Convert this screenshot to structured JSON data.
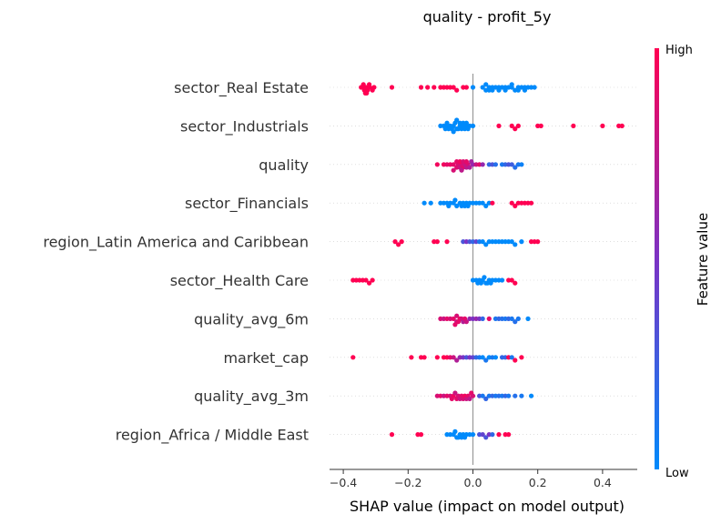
{
  "chart_data": {
    "type": "scatter",
    "title": "quality - profit_5y",
    "xlabel": "SHAP value (impact on model output)",
    "xlim": [
      -0.42,
      0.47
    ],
    "xticks": [
      -0.4,
      -0.2,
      0.0,
      0.2,
      0.4
    ],
    "xtick_labels": [
      "−0.4",
      "−0.2",
      "0.0",
      "0.2",
      "0.4"
    ],
    "colorbar": {
      "title": "Feature value",
      "high_label": "High",
      "low_label": "Low",
      "low_color": "#008afb",
      "mid_color": "#7b32c4",
      "high_color": "#ff0052"
    },
    "features": [
      {
        "name": "sector_Real Estate",
        "points": [
          [
            -0.345,
            1
          ],
          [
            -0.34,
            1
          ],
          [
            -0.335,
            1
          ],
          [
            -0.33,
            1
          ],
          [
            -0.325,
            1
          ],
          [
            -0.32,
            1
          ],
          [
            -0.338,
            1
          ],
          [
            -0.332,
            1
          ],
          [
            -0.328,
            1
          ],
          [
            -0.318,
            1
          ],
          [
            -0.31,
            1
          ],
          [
            -0.305,
            1
          ],
          [
            -0.25,
            1
          ],
          [
            -0.16,
            1
          ],
          [
            -0.14,
            1
          ],
          [
            -0.12,
            1
          ],
          [
            -0.1,
            1
          ],
          [
            -0.09,
            1
          ],
          [
            -0.08,
            1
          ],
          [
            -0.07,
            1
          ],
          [
            -0.06,
            1
          ],
          [
            -0.05,
            1
          ],
          [
            -0.03,
            1
          ],
          [
            -0.02,
            1
          ],
          [
            0.0,
            0
          ],
          [
            0.03,
            0
          ],
          [
            0.04,
            0
          ],
          [
            0.05,
            0
          ],
          [
            0.06,
            0
          ],
          [
            0.07,
            0
          ],
          [
            0.08,
            0
          ],
          [
            0.09,
            0
          ],
          [
            0.1,
            0
          ],
          [
            0.11,
            0
          ],
          [
            0.12,
            0
          ],
          [
            0.13,
            0
          ],
          [
            0.14,
            0
          ],
          [
            0.15,
            0
          ],
          [
            0.16,
            0
          ],
          [
            0.17,
            0
          ],
          [
            0.18,
            0
          ],
          [
            0.19,
            0
          ],
          [
            0.05,
            0
          ],
          [
            0.08,
            0
          ],
          [
            0.12,
            0
          ],
          [
            0.14,
            0
          ],
          [
            0.1,
            0
          ],
          [
            0.04,
            0
          ],
          [
            0.06,
            0
          ],
          [
            0.16,
            0
          ]
        ]
      },
      {
        "name": "sector_Industrials",
        "points": [
          [
            -0.1,
            0
          ],
          [
            -0.09,
            0
          ],
          [
            -0.08,
            0
          ],
          [
            -0.07,
            0
          ],
          [
            -0.06,
            0
          ],
          [
            -0.05,
            0
          ],
          [
            -0.04,
            0
          ],
          [
            -0.03,
            0
          ],
          [
            -0.02,
            0
          ],
          [
            -0.01,
            0
          ],
          [
            0.0,
            0
          ],
          [
            -0.085,
            0
          ],
          [
            -0.065,
            0
          ],
          [
            -0.045,
            0
          ],
          [
            -0.025,
            0
          ],
          [
            -0.055,
            0
          ],
          [
            -0.075,
            0
          ],
          [
            -0.035,
            0
          ],
          [
            -0.015,
            0
          ],
          [
            -0.06,
            0
          ],
          [
            -0.04,
            0
          ],
          [
            -0.02,
            0
          ],
          [
            -0.08,
            0
          ],
          [
            -0.05,
            0
          ],
          [
            -0.03,
            0
          ],
          [
            0.08,
            1
          ],
          [
            0.12,
            1
          ],
          [
            0.13,
            1
          ],
          [
            0.14,
            1
          ],
          [
            0.2,
            1
          ],
          [
            0.21,
            1
          ],
          [
            0.31,
            1
          ],
          [
            0.4,
            1
          ],
          [
            0.45,
            1
          ],
          [
            0.46,
            1
          ]
        ]
      },
      {
        "name": "quality",
        "points": [
          [
            -0.11,
            0.95
          ],
          [
            -0.09,
            0.95
          ],
          [
            -0.08,
            0.9
          ],
          [
            -0.07,
            0.92
          ],
          [
            -0.06,
            0.9
          ],
          [
            -0.05,
            0.88
          ],
          [
            -0.045,
            0.85
          ],
          [
            -0.04,
            0.8
          ],
          [
            -0.035,
            0.85
          ],
          [
            -0.03,
            0.9
          ],
          [
            -0.025,
            0.8
          ],
          [
            -0.02,
            0.75
          ],
          [
            -0.015,
            0.85
          ],
          [
            -0.01,
            0.7
          ],
          [
            -0.005,
            0.65
          ],
          [
            0.0,
            0.6
          ],
          [
            -0.05,
            0.9
          ],
          [
            -0.04,
            0.95
          ],
          [
            -0.03,
            0.85
          ],
          [
            -0.02,
            0.9
          ],
          [
            -0.06,
            0.85
          ],
          [
            -0.035,
            0.75
          ],
          [
            0.01,
            0.8
          ],
          [
            0.02,
            0.9
          ],
          [
            0.03,
            0.6
          ],
          [
            0.05,
            0.2
          ],
          [
            0.06,
            0.3
          ],
          [
            0.07,
            0.15
          ],
          [
            0.09,
            0.1
          ],
          [
            0.1,
            0.2
          ],
          [
            0.11,
            0.3
          ],
          [
            0.12,
            0.25
          ],
          [
            0.13,
            0.15
          ],
          [
            0.14,
            0.1
          ],
          [
            0.15,
            0.05
          ]
        ]
      },
      {
        "name": "sector_Financials",
        "points": [
          [
            -0.15,
            0
          ],
          [
            -0.13,
            0
          ],
          [
            -0.1,
            0
          ],
          [
            -0.09,
            0
          ],
          [
            -0.08,
            0
          ],
          [
            -0.07,
            0
          ],
          [
            -0.06,
            0
          ],
          [
            -0.05,
            0
          ],
          [
            -0.04,
            0
          ],
          [
            -0.03,
            0
          ],
          [
            -0.02,
            0
          ],
          [
            -0.01,
            0
          ],
          [
            0.0,
            0
          ],
          [
            -0.075,
            0
          ],
          [
            -0.055,
            0
          ],
          [
            -0.035,
            0
          ],
          [
            -0.015,
            0
          ],
          [
            -0.025,
            0
          ],
          [
            0.01,
            0
          ],
          [
            0.02,
            0
          ],
          [
            0.03,
            0
          ],
          [
            0.04,
            0
          ],
          [
            0.05,
            0
          ],
          [
            0.06,
            1
          ],
          [
            0.12,
            1
          ],
          [
            0.13,
            1
          ],
          [
            0.14,
            1
          ],
          [
            0.15,
            1
          ],
          [
            0.16,
            1
          ],
          [
            0.17,
            1
          ],
          [
            0.18,
            1
          ]
        ]
      },
      {
        "name": "region_Latin America and Caribbean",
        "points": [
          [
            -0.24,
            1
          ],
          [
            -0.23,
            1
          ],
          [
            -0.22,
            1
          ],
          [
            -0.12,
            1
          ],
          [
            -0.11,
            1
          ],
          [
            -0.08,
            1
          ],
          [
            -0.03,
            0.3
          ],
          [
            -0.02,
            0.5
          ],
          [
            -0.01,
            0.3
          ],
          [
            0.0,
            0.2
          ],
          [
            0.01,
            0.4
          ],
          [
            0.02,
            0.1
          ],
          [
            0.03,
            0
          ],
          [
            0.04,
            0
          ],
          [
            0.05,
            0
          ],
          [
            0.06,
            0
          ],
          [
            0.07,
            0
          ],
          [
            0.08,
            0
          ],
          [
            0.09,
            0
          ],
          [
            0.1,
            0
          ],
          [
            0.11,
            0
          ],
          [
            0.12,
            0
          ],
          [
            0.13,
            0
          ],
          [
            0.15,
            0
          ],
          [
            0.18,
            1
          ],
          [
            0.19,
            1
          ],
          [
            0.2,
            1
          ]
        ]
      },
      {
        "name": "sector_Health Care",
        "points": [
          [
            -0.37,
            1
          ],
          [
            -0.36,
            1
          ],
          [
            -0.35,
            1
          ],
          [
            -0.34,
            1
          ],
          [
            -0.33,
            1
          ],
          [
            -0.32,
            1
          ],
          [
            -0.31,
            1
          ],
          [
            0.0,
            0
          ],
          [
            0.01,
            0
          ],
          [
            0.02,
            0
          ],
          [
            0.03,
            0
          ],
          [
            0.04,
            0
          ],
          [
            0.05,
            0
          ],
          [
            0.06,
            0
          ],
          [
            0.07,
            0
          ],
          [
            0.08,
            0
          ],
          [
            0.09,
            0
          ],
          [
            0.015,
            0
          ],
          [
            0.035,
            0
          ],
          [
            0.055,
            0
          ],
          [
            0.025,
            0
          ],
          [
            0.045,
            0
          ],
          [
            0.11,
            1
          ],
          [
            0.12,
            1
          ],
          [
            0.13,
            1
          ]
        ]
      },
      {
        "name": "quality_avg_6m",
        "points": [
          [
            -0.1,
            0.85
          ],
          [
            -0.09,
            0.8
          ],
          [
            -0.08,
            0.9
          ],
          [
            -0.07,
            0.85
          ],
          [
            -0.06,
            0.9
          ],
          [
            -0.05,
            0.8
          ],
          [
            -0.04,
            0.95
          ],
          [
            -0.035,
            0.85
          ],
          [
            -0.03,
            0.7
          ],
          [
            -0.025,
            0.9
          ],
          [
            -0.02,
            0.8
          ],
          [
            -0.01,
            0.6
          ],
          [
            0.0,
            0.5
          ],
          [
            -0.05,
            0.85
          ],
          [
            -0.045,
            0.9
          ],
          [
            -0.055,
            0.9
          ],
          [
            0.01,
            0.6
          ],
          [
            0.02,
            0.5
          ],
          [
            0.03,
            0.2
          ],
          [
            0.05,
            0.9
          ],
          [
            0.07,
            0.1
          ],
          [
            0.08,
            0.2
          ],
          [
            0.09,
            0.15
          ],
          [
            0.1,
            0.1
          ],
          [
            0.11,
            0.2
          ],
          [
            0.12,
            0.1
          ],
          [
            0.13,
            0.15
          ],
          [
            0.14,
            0.1
          ],
          [
            0.17,
            0
          ]
        ]
      },
      {
        "name": "market_cap",
        "points": [
          [
            -0.37,
            1
          ],
          [
            -0.19,
            1
          ],
          [
            -0.16,
            1
          ],
          [
            -0.15,
            1
          ],
          [
            -0.11,
            1
          ],
          [
            -0.09,
            1
          ],
          [
            -0.08,
            1
          ],
          [
            -0.07,
            0.9
          ],
          [
            -0.06,
            0.8
          ],
          [
            -0.05,
            0.7
          ],
          [
            -0.04,
            0.6
          ],
          [
            -0.03,
            0.5
          ],
          [
            -0.02,
            0.3
          ],
          [
            -0.01,
            0.5
          ],
          [
            0.0,
            0.4
          ],
          [
            0.01,
            0.2
          ],
          [
            0.02,
            0.1
          ],
          [
            0.03,
            0
          ],
          [
            0.04,
            0.1
          ],
          [
            0.05,
            0
          ],
          [
            0.06,
            0.1
          ],
          [
            0.07,
            0
          ],
          [
            0.09,
            0.2
          ],
          [
            0.1,
            0.2
          ],
          [
            0.11,
            1
          ],
          [
            0.12,
            0.1
          ],
          [
            0.13,
            1
          ],
          [
            0.15,
            1
          ]
        ]
      },
      {
        "name": "quality_avg_3m",
        "points": [
          [
            -0.11,
            0.85
          ],
          [
            -0.1,
            0.9
          ],
          [
            -0.09,
            0.8
          ],
          [
            -0.08,
            0.9
          ],
          [
            -0.07,
            0.85
          ],
          [
            -0.06,
            0.95
          ],
          [
            -0.05,
            0.9
          ],
          [
            -0.045,
            0.85
          ],
          [
            -0.04,
            0.8
          ],
          [
            -0.035,
            0.9
          ],
          [
            -0.03,
            0.85
          ],
          [
            -0.025,
            0.95
          ],
          [
            -0.02,
            0.8
          ],
          [
            -0.015,
            0.9
          ],
          [
            -0.01,
            0.75
          ],
          [
            -0.005,
            0.9
          ],
          [
            0.0,
            0.85
          ],
          [
            -0.065,
            0.9
          ],
          [
            -0.055,
            0.8
          ],
          [
            0.02,
            0.3
          ],
          [
            0.03,
            0.1
          ],
          [
            0.04,
            0.2
          ],
          [
            0.05,
            0.1
          ],
          [
            0.06,
            0.2
          ],
          [
            0.07,
            0.1
          ],
          [
            0.08,
            0.15
          ],
          [
            0.09,
            0.1
          ],
          [
            0.1,
            0.2
          ],
          [
            0.11,
            0.1
          ],
          [
            0.13,
            0.15
          ],
          [
            0.15,
            0.1
          ],
          [
            0.18,
            0
          ]
        ]
      },
      {
        "name": "region_Africa / Middle East",
        "points": [
          [
            -0.25,
            1
          ],
          [
            -0.17,
            1
          ],
          [
            -0.16,
            1
          ],
          [
            -0.08,
            0
          ],
          [
            -0.07,
            0
          ],
          [
            -0.06,
            0
          ],
          [
            -0.05,
            0
          ],
          [
            -0.04,
            0
          ],
          [
            -0.03,
            0
          ],
          [
            -0.02,
            0
          ],
          [
            -0.01,
            0
          ],
          [
            0.0,
            0
          ],
          [
            -0.045,
            0
          ],
          [
            -0.035,
            0
          ],
          [
            -0.055,
            0
          ],
          [
            -0.025,
            0
          ],
          [
            0.02,
            0.3
          ],
          [
            0.03,
            0.4
          ],
          [
            0.04,
            0.3
          ],
          [
            0.05,
            0.5
          ],
          [
            0.06,
            0.2
          ],
          [
            0.08,
            1
          ],
          [
            0.1,
            1
          ],
          [
            0.11,
            1
          ]
        ]
      }
    ]
  }
}
